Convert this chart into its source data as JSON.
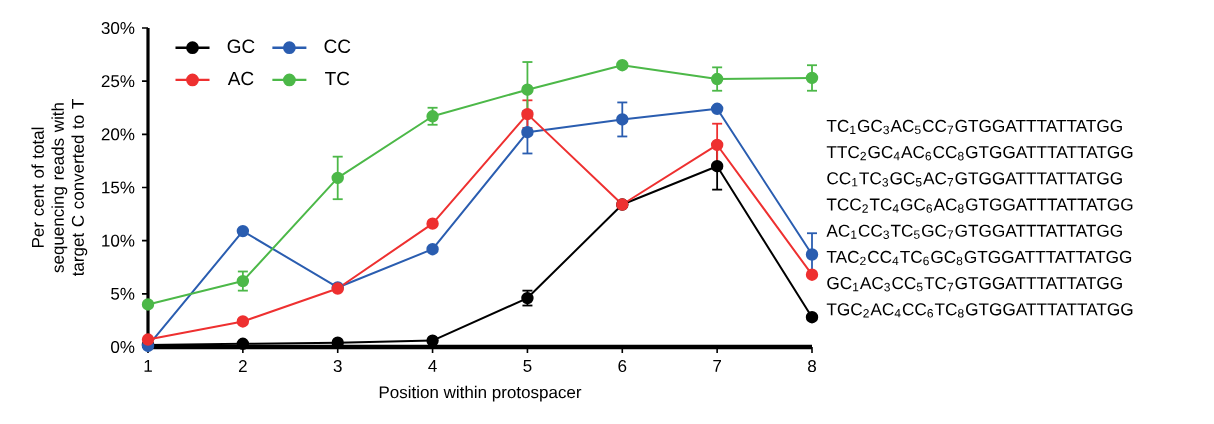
{
  "chart_data": {
    "type": "line",
    "xlabel": "Position within protospacer",
    "ylabel": "Per cent of total sequencing reads with target C converted to T",
    "x": [
      1,
      2,
      3,
      4,
      5,
      6,
      7,
      8
    ],
    "xlim": [
      1,
      8
    ],
    "xticks": [
      1,
      2,
      3,
      4,
      5,
      6,
      7,
      8
    ],
    "ylim": [
      0,
      30
    ],
    "yticks": [
      {
        "value": 0,
        "label": "0%"
      },
      {
        "value": 5,
        "label": "5%"
      },
      {
        "value": 10,
        "label": "10%"
      },
      {
        "value": 15,
        "label": "15%"
      },
      {
        "value": 20,
        "label": "20%"
      },
      {
        "value": 25,
        "label": "25%"
      },
      {
        "value": 30,
        "label": "30%"
      }
    ],
    "series": [
      {
        "name": "GC",
        "color": "#000000",
        "values": [
          0.2,
          0.3,
          0.4,
          0.6,
          4.6,
          13.4,
          17.0,
          2.8
        ],
        "errors": [
          null,
          null,
          null,
          null,
          0.7,
          null,
          2.2,
          null
        ]
      },
      {
        "name": "CC",
        "color": "#2a5db0",
        "values": [
          0.1,
          10.9,
          5.6,
          9.2,
          20.2,
          21.4,
          22.4,
          8.7
        ],
        "errors": [
          null,
          null,
          null,
          null,
          2.0,
          1.6,
          null,
          2.0
        ]
      },
      {
        "name": "AC",
        "color": "#ee3030",
        "values": [
          0.7,
          2.4,
          5.5,
          11.6,
          21.9,
          13.4,
          19.0,
          6.8
        ],
        "errors": [
          null,
          null,
          null,
          null,
          1.3,
          null,
          2.0,
          null
        ]
      },
      {
        "name": "TC",
        "color": "#4cb848",
        "values": [
          4.0,
          6.2,
          15.9,
          21.7,
          24.2,
          26.5,
          25.2,
          25.3
        ],
        "errors": [
          null,
          0.9,
          2.0,
          0.8,
          2.6,
          null,
          1.1,
          1.2
        ]
      }
    ],
    "marker": "circle",
    "legend": "top left",
    "grid": false,
    "annotations": [
      "TC$_{1}$GC$_{3}$AC$_{5}$CC$_{7}$GTGGATTTATTATGG",
      "TTC$_{2}$GC$_{4}$AC$_{6}$CC$_{8}$GTGGATTTATTATGG",
      "CC$_{1}$TC$_{3}$GC$_{5}$AC$_{7}$GTGGATTTATTATGG",
      "TCC$_{2}$TC$_{4}$GC$_{6}$AC$_{8}$GTGGATTTATTATGG",
      "AC$_{1}$CC$_{3}$TC$_{5}$GC$_{7}$GTGGATTTATTATGG",
      "TAC$_{2}$CC$_{4}$TC$_{6}$GC$_{8}$GTGGATTTATTATGG",
      "GC$_{1}$AC$_{3}$CC$_{5}$TC$_{7}$GTGGATTTATTATGG",
      "TGC$_{2}$AC$_{4}$CC$_{6}$TC$_{8}$GTGGATTTATTATGG"
    ]
  }
}
